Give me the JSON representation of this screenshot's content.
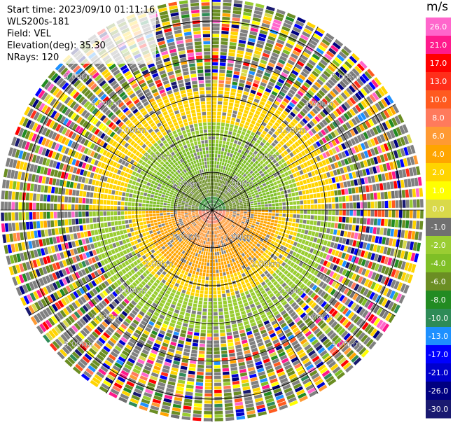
{
  "info": {
    "start_time": "Start time: 2023/09/10 01:11:16",
    "instrument": "WLS200s-181",
    "field": "Field: VEL",
    "elevation": "Elevation(deg): 35.30",
    "nrays": "NRays: 120"
  },
  "colorbar": {
    "unit": "m/s",
    "levels": [
      "26.0",
      "21.0",
      "17.0",
      "13.0",
      "10.0",
      "8.0",
      "6.0",
      "4.0",
      "2.0",
      "1.0",
      "0.0",
      "-1.0",
      "-2.0",
      "-4.0",
      "-6.0",
      "-8.0",
      "-10.0",
      "-13.0",
      "-17.0",
      "-21.0",
      "-26.0",
      "-30.0"
    ],
    "colors": [
      "#ff66cc",
      "#ff1a8c",
      "#ff0000",
      "#ff2e1a",
      "#ff5a1f",
      "#ff7a5c",
      "#ff9a33",
      "#ffa500",
      "#ffd400",
      "#ffff00",
      "#d9d94a",
      "#707070",
      "#9acd32",
      "#7fbf26",
      "#6b8e23",
      "#228b22",
      "#2e8b57",
      "#1e90ff",
      "#0000ff",
      "#0000cd",
      "#000080",
      "#191970"
    ]
  },
  "chart_data": {
    "type": "ppi",
    "field": "VEL",
    "unit": "m/s",
    "range_rings_km": [
      1.0,
      2.0,
      3.0,
      4.0,
      5.0
    ],
    "range_labels": {
      "nw": [
        "1.00km",
        "2.00km",
        "3.00km",
        "4.00km",
        "5.00km"
      ],
      "ne": [
        "1.00km",
        "2.00km",
        "3.00km",
        "4.00km",
        "5.00km"
      ],
      "sw": [
        "1.00km",
        "2.00km",
        "3.00km",
        "4.00km",
        "5.00km"
      ],
      "se": [
        "1.00km",
        "2.00km",
        "3.00km",
        "4.00km",
        "5.00km"
      ]
    },
    "max_range_km": 5.6,
    "spoke_angles_deg": [
      0,
      30,
      60,
      90,
      120,
      150,
      180,
      210,
      240,
      270,
      300,
      330
    ],
    "velocity_pattern": [
      {
        "max_range_km": 0.3,
        "north_half": "-8.0",
        "south_half": "8.0"
      },
      {
        "max_range_km": 1.0,
        "north_half": "-6.0",
        "south_half": "6.0"
      },
      {
        "max_range_km": 1.7,
        "north_half": "-4.0",
        "south_half": "4.0"
      },
      {
        "max_range_km": 2.3,
        "north_half": "-2.0",
        "south_half": "2.0"
      },
      {
        "max_range_km": 3.2,
        "north_half": "2.0",
        "south_half": "-2.0"
      },
      {
        "max_range_km": 5.6,
        "north_half": "noise",
        "south_half": "noise"
      }
    ]
  }
}
